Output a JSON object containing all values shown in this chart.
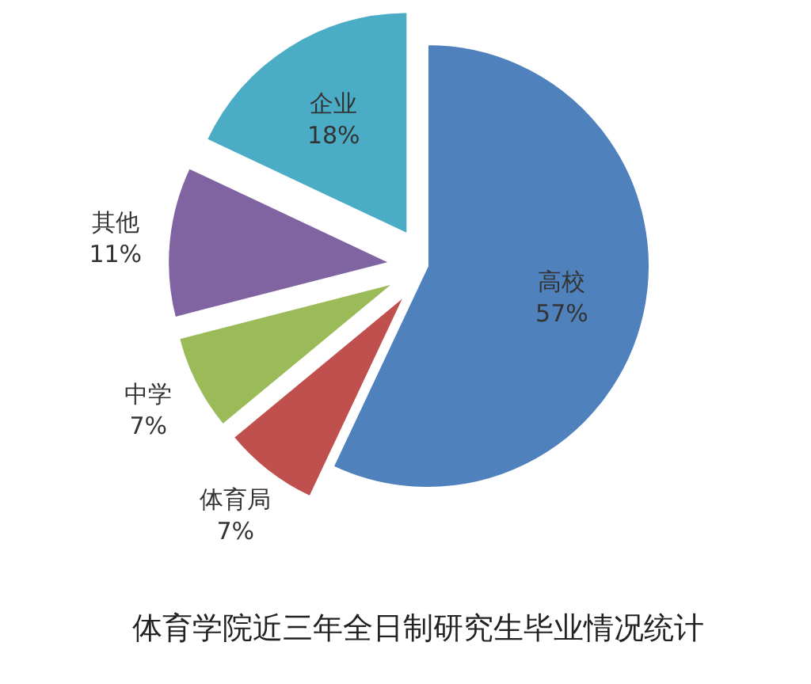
{
  "chart_data": {
    "type": "pie",
    "title": "体育学院近三年全日制研究生毕业情况统计",
    "categories": [
      "高校",
      "体育局",
      "中学",
      "其他",
      "企业"
    ],
    "values": [
      57,
      7,
      7,
      11,
      18
    ],
    "value_labels": [
      "57%",
      "7%",
      "7%",
      "11%",
      "18%"
    ],
    "colors": [
      "#4f81bd",
      "#c0504d",
      "#9bbb59",
      "#8064a2",
      "#4bacc6"
    ]
  }
}
